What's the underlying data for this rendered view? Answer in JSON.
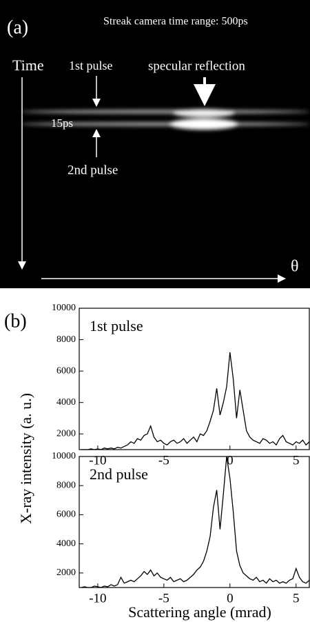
{
  "panel_a": {
    "label": "(a)",
    "note": "Streak camera time range: 500ps",
    "time_axis": "Time",
    "angle_axis": "θ",
    "first_pulse": "1st pulse",
    "second_pulse": "2nd pulse",
    "specular": "specular reflection",
    "spacing": "15ps"
  },
  "panel_b": {
    "label": "(b)",
    "xlabel": "Scattering angle (mrad)",
    "ylabel": "X-ray intensity (a. u.)"
  },
  "chart_data": [
    {
      "type": "line",
      "title": "1st pulse",
      "color": "#000000",
      "x": [
        -11.25,
        -11,
        -10.75,
        -10.5,
        -10.25,
        -10,
        -9.75,
        -9.5,
        -9.25,
        -9,
        -8.75,
        -8.5,
        -8.25,
        -8,
        -7.75,
        -7.5,
        -7.25,
        -7,
        -6.75,
        -6.5,
        -6.25,
        -6,
        -5.75,
        -5.5,
        -5.25,
        -5,
        -4.75,
        -4.5,
        -4.25,
        -4,
        -3.75,
        -3.5,
        -3.25,
        -3,
        -2.75,
        -2.5,
        -2.25,
        -2,
        -1.75,
        -1.5,
        -1.25,
        -1,
        -0.75,
        -0.5,
        -0.25,
        0,
        0.25,
        0.5,
        0.75,
        1,
        1.25,
        1.5,
        1.75,
        2,
        2.25,
        2.5,
        2.75,
        3,
        3.25,
        3.5,
        3.75,
        4,
        4.25,
        4.5,
        4.75,
        5,
        5.25,
        5.5,
        5.75,
        6
      ],
      "values": [
        1000,
        1000,
        1000,
        1050,
        1000,
        1050,
        1000,
        1100,
        1050,
        1100,
        1050,
        1150,
        1100,
        1200,
        1300,
        1500,
        1400,
        1700,
        1600,
        1900,
        2000,
        2500,
        1800,
        1500,
        1600,
        1400,
        1300,
        1500,
        1600,
        1400,
        1500,
        1700,
        1400,
        1600,
        1800,
        1500,
        2000,
        1900,
        2200,
        2800,
        3500,
        4900,
        3200,
        4000,
        5000,
        7200,
        5500,
        3000,
        4800,
        3500,
        2200,
        1800,
        1600,
        1500,
        1400,
        1700,
        1600,
        1400,
        1500,
        1300,
        1700,
        1900,
        1500,
        1400,
        1300,
        1500,
        1400,
        1600,
        1300,
        1500
      ],
      "xlim": [
        -11.4,
        6
      ],
      "xticks": [
        -10,
        -5,
        0,
        5
      ],
      "ylim": [
        1000,
        10000
      ],
      "yticks": [
        2000,
        4000,
        6000,
        8000,
        10000
      ]
    },
    {
      "type": "line",
      "title": "2nd pulse",
      "color": "#000000",
      "x": [
        -11.25,
        -11,
        -10.75,
        -10.5,
        -10.25,
        -10,
        -9.75,
        -9.5,
        -9.25,
        -9,
        -8.75,
        -8.5,
        -8.25,
        -8,
        -7.75,
        -7.5,
        -7.25,
        -7,
        -6.75,
        -6.5,
        -6.25,
        -6,
        -5.75,
        -5.5,
        -5.25,
        -5,
        -4.75,
        -4.5,
        -4.25,
        -4,
        -3.75,
        -3.5,
        -3.25,
        -3,
        -2.75,
        -2.5,
        -2.25,
        -2,
        -1.75,
        -1.5,
        -1.25,
        -1,
        -0.75,
        -0.5,
        -0.25,
        0,
        0.25,
        0.5,
        0.75,
        1,
        1.25,
        1.5,
        1.75,
        2,
        2.25,
        2.5,
        2.75,
        3,
        3.25,
        3.5,
        3.75,
        4,
        4.25,
        4.5,
        4.75,
        5,
        5.25,
        5.5,
        5.75,
        6
      ],
      "values": [
        1000,
        1050,
        1000,
        1000,
        1100,
        1050,
        1000,
        1100,
        1050,
        1200,
        1100,
        1200,
        1700,
        1300,
        1400,
        1500,
        1400,
        1600,
        1800,
        2100,
        1900,
        2200,
        1800,
        2000,
        1700,
        1600,
        1500,
        1700,
        1400,
        1500,
        1600,
        1400,
        1500,
        1700,
        1900,
        2200,
        2400,
        2800,
        3500,
        4500,
        6500,
        7700,
        5000,
        7400,
        10000,
        8500,
        6200,
        3500,
        2500,
        2000,
        1800,
        1600,
        1500,
        1700,
        1400,
        1500,
        1300,
        1600,
        1400,
        1500,
        1300,
        1400,
        1300,
        1500,
        1600,
        2300,
        1700,
        1400,
        1300,
        1500
      ],
      "xlim": [
        -11.4,
        6
      ],
      "xticks": [
        -10,
        -5,
        0,
        5
      ],
      "ylim": [
        1000,
        10000
      ],
      "yticks": [
        2000,
        4000,
        6000,
        8000,
        10000
      ]
    }
  ]
}
